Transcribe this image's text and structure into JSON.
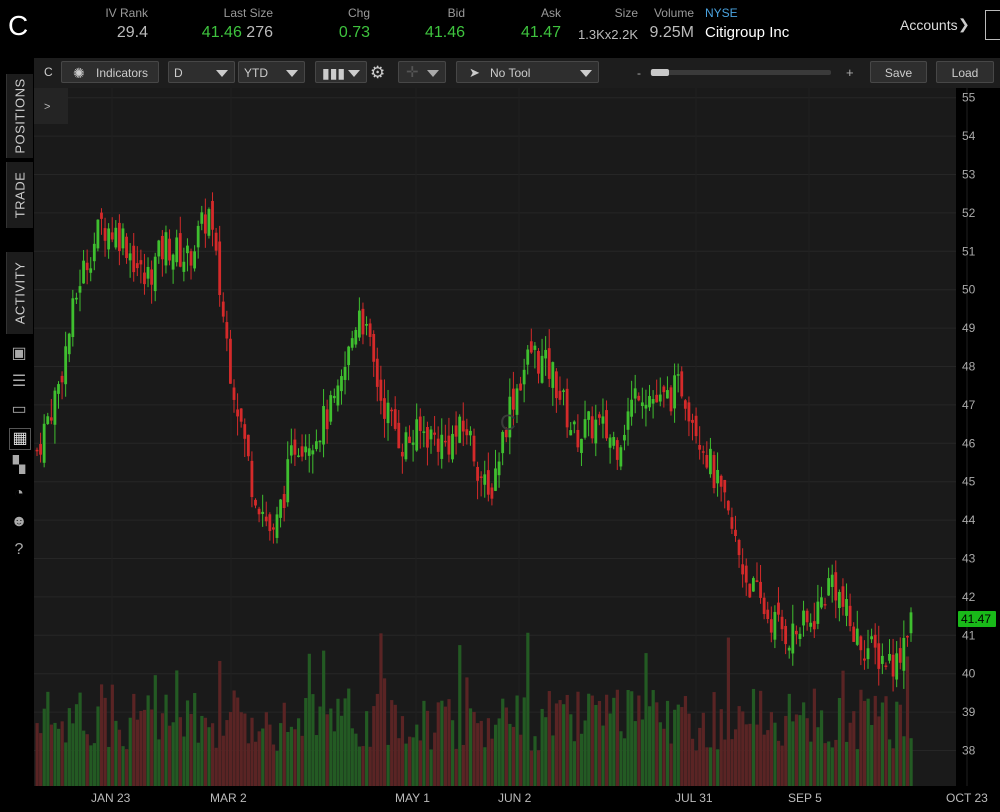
{
  "header": {
    "symbol": "C",
    "iv_rank": {
      "label": "IV Rank",
      "value": "29.4"
    },
    "last_size": {
      "label": "Last Size",
      "last": "41.46",
      "size": "276"
    },
    "chg": {
      "label": "Chg",
      "value": "0.73"
    },
    "bid": {
      "label": "Bid",
      "value": "41.46"
    },
    "ask": {
      "label": "Ask",
      "value": "41.47"
    },
    "size": {
      "label": "Size",
      "value": "1.3Kx2.2K"
    },
    "volume": {
      "label": "Volume",
      "value": "9.25M"
    },
    "exchange": "NYSE",
    "company": "Citigroup Inc",
    "accounts_label": "Accounts"
  },
  "sidebar": {
    "tabs": [
      "POSITIONS",
      "TRADE",
      "ACTIVITY"
    ],
    "expand_label": ">"
  },
  "toolbar": {
    "symbol": "C",
    "indicators_label": "Indicators",
    "interval": "D",
    "range": "YTD",
    "tool": "No Tool",
    "zoom_minus": "-",
    "zoom_plus": "+",
    "save_label": "Save",
    "load_label": "Load"
  },
  "colors": {
    "up": "#3fbf2f",
    "down": "#d42a2a",
    "up_vol": "#235a23",
    "down_vol": "#5a2424",
    "bg": "#1a1a1a",
    "grid": "#262626",
    "price_tag": "#19b919"
  },
  "chart_data": {
    "type": "candlestick",
    "watermark": "C",
    "y_ticks": [
      38,
      39,
      40,
      41,
      42,
      43,
      44,
      45,
      46,
      47,
      48,
      49,
      50,
      51,
      52,
      53,
      54,
      55
    ],
    "x_ticks": [
      "JAN 23",
      "MAR 2",
      "MAY 1",
      "JUN 2",
      "JUL 31",
      "SEP 5",
      "OCT 23"
    ],
    "last_price": "41.47",
    "anchors": [
      [
        0,
        45.8
      ],
      [
        6,
        47.5
      ],
      [
        12,
        50.3
      ],
      [
        18,
        51.7
      ],
      [
        24,
        51.4
      ],
      [
        30,
        50.2
      ],
      [
        36,
        51.2
      ],
      [
        42,
        50.8
      ],
      [
        48,
        52.0
      ],
      [
        54,
        48.0
      ],
      [
        60,
        45.0
      ],
      [
        66,
        43.5
      ],
      [
        72,
        46.0
      ],
      [
        78,
        46.3
      ],
      [
        84,
        47.1
      ],
      [
        90,
        49.6
      ],
      [
        96,
        47.2
      ],
      [
        102,
        46.0
      ],
      [
        108,
        46.3
      ],
      [
        114,
        46.0
      ],
      [
        120,
        46.4
      ],
      [
        126,
        44.5
      ],
      [
        132,
        47.0
      ],
      [
        138,
        48.4
      ],
      [
        144,
        47.8
      ],
      [
        150,
        46.2
      ],
      [
        156,
        46.5
      ],
      [
        162,
        46.0
      ],
      [
        168,
        47.5
      ],
      [
        174,
        47.0
      ],
      [
        180,
        47.5
      ],
      [
        186,
        46.0
      ],
      [
        192,
        44.3
      ],
      [
        198,
        42.5
      ],
      [
        204,
        41.5
      ],
      [
        210,
        41.0
      ],
      [
        216,
        41.3
      ],
      [
        222,
        42.5
      ],
      [
        228,
        41.0
      ],
      [
        234,
        40.5
      ],
      [
        240,
        40.3
      ],
      [
        244,
        41.6
      ]
    ]
  }
}
